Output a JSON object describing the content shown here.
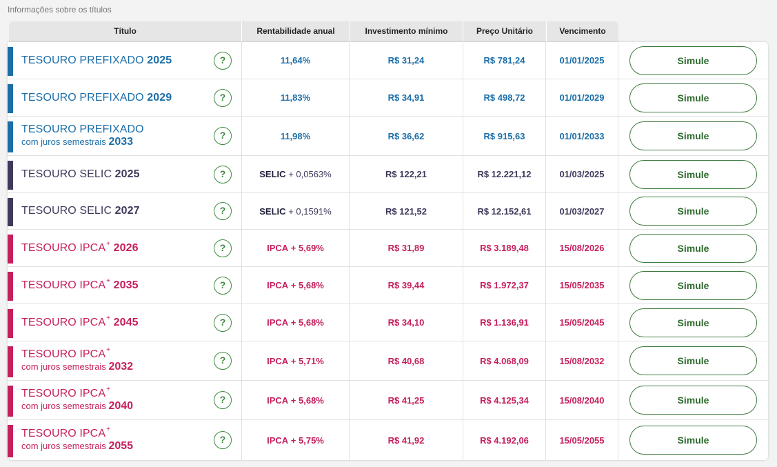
{
  "caption": "Informações sobre os títulos",
  "headers": {
    "titulo": "Título",
    "rentabilidade": "Rentabilidade anual",
    "investimento": "Investimento mínimo",
    "preco": "Preço Unitário",
    "vencimento": "Vencimento"
  },
  "colors": {
    "prefixado": "#1b6ea8",
    "selic": "#3e3a5c",
    "ipca": "#c51f5d",
    "action": "#2e6b2e"
  },
  "help_label": "?",
  "rows": [
    {
      "group": "blue",
      "name": "TESOURO PREFIXADO",
      "sup": "",
      "juros": "",
      "year": "2025",
      "rent_prefix": "",
      "rent": "11,64%",
      "inv": "R$ 31,24",
      "preco": "R$ 781,24",
      "venc": "01/01/2025",
      "action": "Simule"
    },
    {
      "group": "blue",
      "name": "TESOURO PREFIXADO",
      "sup": "",
      "juros": "",
      "year": "2029",
      "rent_prefix": "",
      "rent": "11,83%",
      "inv": "R$ 34,91",
      "preco": "R$ 498,72",
      "venc": "01/01/2029",
      "action": "Simule"
    },
    {
      "group": "blue",
      "name": "TESOURO PREFIXADO",
      "sup": "",
      "juros": "com juros semestrais",
      "year": "2033",
      "rent_prefix": "",
      "rent": "11,98%",
      "inv": "R$ 36,62",
      "preco": "R$ 915,63",
      "venc": "01/01/2033",
      "action": "Simule"
    },
    {
      "group": "navy",
      "name": "TESOURO SELIC",
      "sup": "",
      "juros": "",
      "year": "2025",
      "rent_prefix": "SELIC",
      "rent": "+ 0,0563%",
      "inv": "R$ 122,21",
      "preco": "R$ 12.221,12",
      "venc": "01/03/2025",
      "action": "Simule"
    },
    {
      "group": "navy",
      "name": "TESOURO SELIC",
      "sup": "",
      "juros": "",
      "year": "2027",
      "rent_prefix": "SELIC",
      "rent": "+ 0,1591%",
      "inv": "R$ 121,52",
      "preco": "R$ 12.152,61",
      "venc": "01/03/2027",
      "action": "Simule"
    },
    {
      "group": "crim",
      "name": "TESOURO IPCA",
      "sup": "+",
      "juros": "",
      "year": "2026",
      "rent_prefix": "IPCA",
      "rent": "+ 5,69%",
      "inv": "R$ 31,89",
      "preco": "R$ 3.189,48",
      "venc": "15/08/2026",
      "action": "Simule"
    },
    {
      "group": "crim",
      "name": "TESOURO IPCA",
      "sup": "+",
      "juros": "",
      "year": "2035",
      "rent_prefix": "IPCA",
      "rent": "+ 5,68%",
      "inv": "R$ 39,44",
      "preco": "R$ 1.972,37",
      "venc": "15/05/2035",
      "action": "Simule"
    },
    {
      "group": "crim",
      "name": "TESOURO IPCA",
      "sup": "+",
      "juros": "",
      "year": "2045",
      "rent_prefix": "IPCA",
      "rent": "+ 5,68%",
      "inv": "R$ 34,10",
      "preco": "R$ 1.136,91",
      "venc": "15/05/2045",
      "action": "Simule"
    },
    {
      "group": "crim",
      "name": "TESOURO IPCA",
      "sup": "+",
      "juros": "com juros semestrais",
      "year": "2032",
      "rent_prefix": "IPCA",
      "rent": "+ 5,71%",
      "inv": "R$ 40,68",
      "preco": "R$ 4.068,09",
      "venc": "15/08/2032",
      "action": "Simule"
    },
    {
      "group": "crim",
      "name": "TESOURO IPCA",
      "sup": "+",
      "juros": "com juros semestrais",
      "year": "2040",
      "rent_prefix": "IPCA",
      "rent": "+ 5,68%",
      "inv": "R$ 41,25",
      "preco": "R$ 4.125,34",
      "venc": "15/08/2040",
      "action": "Simule"
    },
    {
      "group": "crim",
      "name": "TESOURO IPCA",
      "sup": "+",
      "juros": "com juros semestrais",
      "year": "2055",
      "rent_prefix": "IPCA",
      "rent": "+ 5,75%",
      "inv": "R$ 41,92",
      "preco": "R$ 4.192,06",
      "venc": "15/05/2055",
      "action": "Simule"
    }
  ]
}
